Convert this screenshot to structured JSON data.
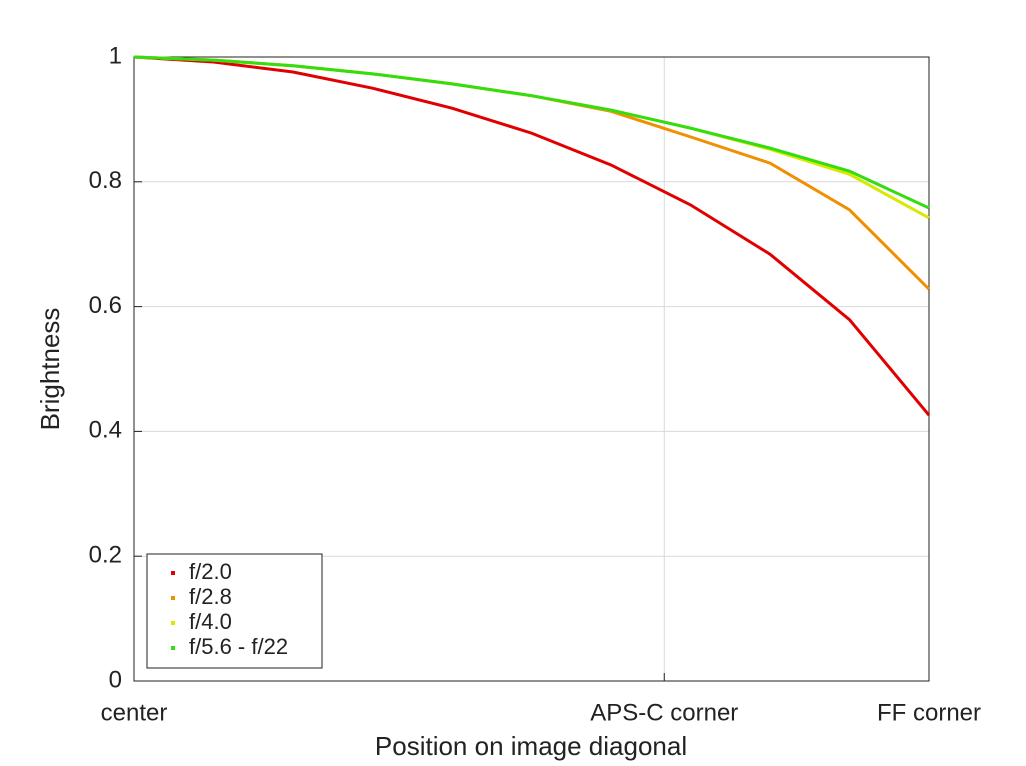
{
  "chart_data": {
    "type": "line",
    "x_label": "Position on image diagonal",
    "y_label": "Brightness",
    "x": [
      0,
      0.1,
      0.2,
      0.3,
      0.4,
      0.5,
      0.6,
      0.7,
      0.8,
      0.9,
      1
    ],
    "series": [
      {
        "name": "f/2.0",
        "color": "#e00000",
        "values": [
          1,
          0.992,
          0.976,
          0.95,
          0.918,
          0.878,
          0.827,
          0.763,
          0.684,
          0.579,
          0.426
        ]
      },
      {
        "name": "f/2.8",
        "color": "#f09000",
        "values": [
          1,
          0.995,
          0.986,
          0.973,
          0.957,
          0.938,
          0.913,
          0.872,
          0.83,
          0.755,
          0.628
        ]
      },
      {
        "name": "f/4.0",
        "color": "#d8e800",
        "values": [
          1,
          0.995,
          0.986,
          0.973,
          0.957,
          0.938,
          0.915,
          0.886,
          0.852,
          0.812,
          0.742
        ]
      },
      {
        "name": "f/5.6 - f/22",
        "color": "#33dd11",
        "values": [
          1,
          0.995,
          0.986,
          0.973,
          0.957,
          0.938,
          0.915,
          0.886,
          0.854,
          0.817,
          0.758
        ]
      }
    ],
    "xlim": [
      0,
      1
    ],
    "xticks": [
      {
        "value": 0,
        "label": "center"
      },
      {
        "value": 0.667,
        "label": "APS-C corner"
      },
      {
        "value": 1,
        "label": "FF corner"
      }
    ],
    "ylim": [
      0,
      1
    ],
    "yticks": [
      0,
      0.2,
      0.4,
      0.6,
      0.8,
      1
    ],
    "grid": true,
    "legend": "lower left"
  }
}
